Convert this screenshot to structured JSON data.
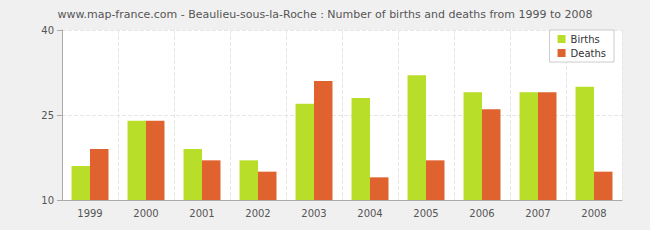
{
  "chart_data": {
    "type": "bar",
    "title": "www.map-france.com - Beaulieu-sous-la-Roche : Number of births and deaths from 1999 to 2008",
    "categories": [
      "1999",
      "2000",
      "2001",
      "2002",
      "2003",
      "2004",
      "2005",
      "2006",
      "2007",
      "2008"
    ],
    "series": [
      {
        "name": "Births",
        "color": "#b8de29",
        "values": [
          16,
          24,
          19,
          17,
          27,
          28,
          32,
          29,
          29,
          30
        ]
      },
      {
        "name": "Deaths",
        "color": "#e0632f",
        "values": [
          19,
          24,
          17,
          15,
          31,
          14,
          17,
          26,
          29,
          15
        ]
      }
    ],
    "ylim": [
      10,
      40
    ],
    "yticks": [
      10,
      25,
      40
    ],
    "grid": true,
    "legend": "top-right"
  }
}
